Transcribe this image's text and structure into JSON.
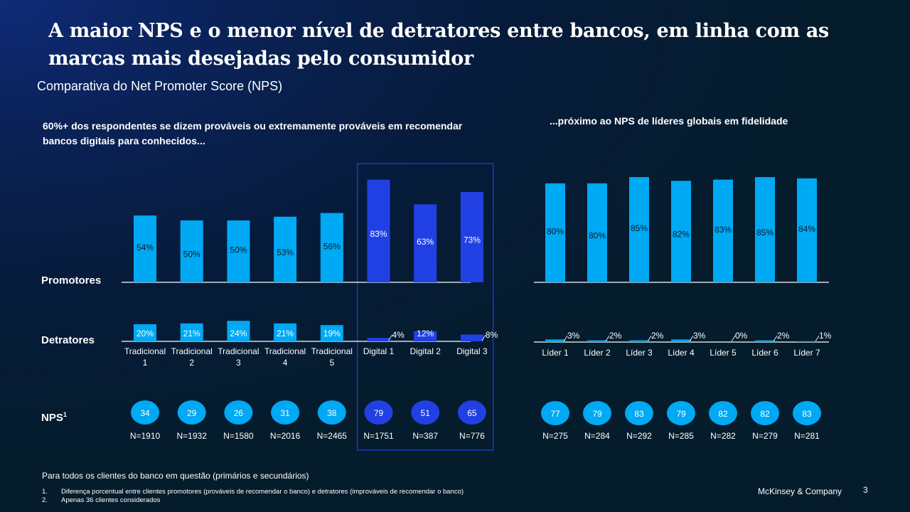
{
  "header": {
    "title": "A maior NPS e o menor nível de detratores entre bancos, em linha com as marcas mais desejadas pelo consumidor",
    "subtitle": "Comparativa do Net Promoter Score (NPS)"
  },
  "left_heading": "60%+ dos respondentes se dizem prováveis ou extremamente prováveis em recomendar bancos digitais para conhecidos...",
  "right_heading": "...próximo ao NPS de líderes globais em fidelidade",
  "row_labels": {
    "promoters": "Promotores",
    "detractors": "Detratores",
    "nps": "NPS",
    "nps_sup": "1"
  },
  "colors": {
    "traditional": "#00a9f4",
    "digital": "#2140e3",
    "highlight_border": "#2140e3",
    "axis": "#ffffff"
  },
  "chart_data": [
    {
      "type": "bar",
      "title": "60%+ dos respondentes se dizem prováveis ou extremamente prováveis em recomendar bancos digitais para conhecidos...",
      "categories": [
        "Tradicional 1",
        "Tradicional 2",
        "Tradicional 3",
        "Tradicional 4",
        "Tradicional 5",
        "Digital 1",
        "Digital 2",
        "Digital 3"
      ],
      "category_lines": [
        [
          "Tradicional",
          "1"
        ],
        [
          "Tradicional",
          "2"
        ],
        [
          "Tradicional",
          "3"
        ],
        [
          "Tradicional",
          "4"
        ],
        [
          "Tradicional",
          "5"
        ],
        [
          "Digital 1"
        ],
        [
          "Digital 2"
        ],
        [
          "Digital 3"
        ]
      ],
      "groups": [
        "traditional",
        "traditional",
        "traditional",
        "traditional",
        "traditional",
        "digital",
        "digital",
        "digital"
      ],
      "highlighted_group": "digital",
      "series": [
        {
          "name": "Promotores",
          "values": [
            54,
            50,
            50,
            53,
            56,
            83,
            63,
            73
          ],
          "labels": [
            "54%",
            "50%",
            "50%",
            "53%",
            "56%",
            "83%",
            "63%",
            "73%"
          ]
        },
        {
          "name": "Detratores",
          "values": [
            20,
            21,
            24,
            21,
            19,
            4,
            12,
            8
          ],
          "labels": [
            "20%",
            "21%",
            "24%",
            "21%",
            "19%",
            "4%",
            "12%",
            "8%"
          ]
        }
      ],
      "nps": {
        "name": "NPS",
        "values": [
          34,
          29,
          26,
          31,
          38,
          79,
          51,
          65
        ],
        "labels": [
          "34",
          "29",
          "26",
          "31",
          "38",
          "79",
          "51",
          "65"
        ]
      },
      "sample_sizes": [
        "N=1910",
        "N=1932",
        "N=1580",
        "N=2016",
        "N=2465",
        "N=1751",
        "N=387",
        "N=776"
      ],
      "unit": "%"
    },
    {
      "type": "bar",
      "title": "...próximo ao NPS de líderes globais em fidelidade",
      "categories": [
        "Líder 1",
        "Líder 2",
        "Líder 3",
        "Líder 4",
        "Líder 5",
        "Líder 6",
        "Líder 7"
      ],
      "category_lines": [
        [
          "Líder 1"
        ],
        [
          "Líder 2"
        ],
        [
          "Líder 3"
        ],
        [
          "Líder 4"
        ],
        [
          "Líder 5"
        ],
        [
          "Líder 6"
        ],
        [
          "Líder 7"
        ]
      ],
      "groups": [
        "traditional",
        "traditional",
        "traditional",
        "traditional",
        "traditional",
        "traditional",
        "traditional"
      ],
      "series": [
        {
          "name": "Promotores",
          "values": [
            80,
            80,
            85,
            82,
            83,
            85,
            84
          ],
          "labels": [
            "80%",
            "80%",
            "85%",
            "82%",
            "83%",
            "85%",
            "84%"
          ]
        },
        {
          "name": "Detratores",
          "values": [
            3,
            2,
            2,
            3,
            0,
            2,
            1
          ],
          "labels": [
            "3%",
            "2%",
            "2%",
            "3%",
            "0%",
            "2%",
            "1%"
          ]
        }
      ],
      "nps": {
        "name": "NPS",
        "values": [
          77,
          79,
          83,
          79,
          82,
          82,
          83
        ],
        "labels": [
          "77",
          "79",
          "83",
          "79",
          "82",
          "82",
          "83"
        ]
      },
      "sample_sizes": [
        "N=275",
        "N=284",
        "N=292",
        "N=285",
        "N=282",
        "N=279",
        "N=281"
      ],
      "unit": "%"
    }
  ],
  "footer": {
    "note": "Para todos os clientes do banco em questão (primários e secundários)",
    "footnotes": [
      {
        "num": "1.",
        "text": "Diferença porcentual entre clientes promotores (prováveis de recomendar o banco) e detratores (improváveis de recomendar o banco)"
      },
      {
        "num": "2.",
        "text": "Apenas 36 clientes considerados"
      }
    ],
    "brand": "McKinsey & Company",
    "page": "3"
  }
}
